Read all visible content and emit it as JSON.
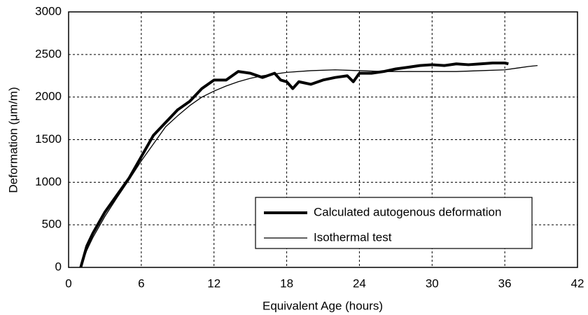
{
  "chart_data": {
    "type": "line",
    "xlabel": "Equivalent Age (hours)",
    "ylabel": "Deformation (μm/m)",
    "xlim": [
      0,
      42
    ],
    "xticks": [
      0,
      6,
      12,
      18,
      24,
      30,
      36,
      42
    ],
    "ylim": [
      0,
      3000
    ],
    "yticks": [
      0,
      500,
      1000,
      1500,
      2000,
      2500,
      3000
    ],
    "grid": true,
    "legend": "lower right",
    "series": [
      {
        "name": "Calculated autogenous deformation",
        "color": "#000000",
        "line_width": 4,
        "x": [
          1.0,
          1.5,
          2,
          3,
          4,
          5,
          6,
          7,
          8,
          9,
          10,
          11,
          12,
          13,
          14,
          15,
          16,
          17,
          17.5,
          18,
          18.5,
          19,
          20,
          21,
          22,
          23,
          23.5,
          24,
          25,
          26,
          27,
          28,
          29,
          30,
          31,
          32,
          33,
          34,
          35,
          36,
          36.3
        ],
        "values": [
          0,
          250,
          400,
          650,
          850,
          1050,
          1300,
          1550,
          1700,
          1850,
          1950,
          2100,
          2200,
          2200,
          2300,
          2280,
          2230,
          2280,
          2200,
          2180,
          2100,
          2180,
          2150,
          2200,
          2230,
          2250,
          2180,
          2280,
          2280,
          2300,
          2330,
          2350,
          2370,
          2380,
          2370,
          2390,
          2380,
          2390,
          2400,
          2400,
          2390
        ]
      },
      {
        "name": "Isothermal test",
        "color": "#000000",
        "line_width": 1.3,
        "x": [
          1.0,
          1.5,
          2,
          3,
          4,
          5,
          6,
          7,
          8,
          9,
          10,
          11,
          12,
          13,
          14,
          15,
          16,
          17,
          18,
          20,
          22,
          24,
          26,
          28,
          30,
          32,
          34,
          36,
          37,
          38,
          38.7
        ],
        "values": [
          0,
          200,
          350,
          600,
          820,
          1030,
          1250,
          1450,
          1650,
          1780,
          1900,
          2000,
          2070,
          2130,
          2180,
          2220,
          2250,
          2270,
          2290,
          2310,
          2320,
          2310,
          2300,
          2300,
          2300,
          2300,
          2310,
          2320,
          2340,
          2360,
          2370
        ]
      }
    ]
  }
}
